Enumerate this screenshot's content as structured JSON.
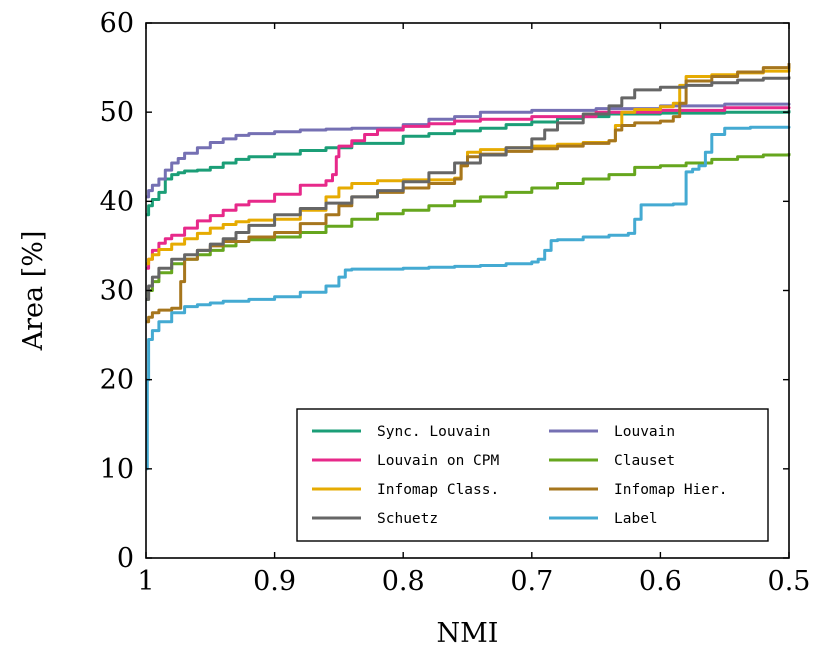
{
  "chart_data": {
    "type": "line",
    "xlabel": "NMI",
    "ylabel": "Area [%]",
    "xlim": [
      1,
      0.5
    ],
    "ylim": [
      0,
      60
    ],
    "x_reversed": true,
    "x_ticks": [
      1,
      0.9,
      0.8,
      0.7,
      0.6,
      0.5
    ],
    "x_tick_labels": [
      "1",
      "0.9",
      "0.8",
      "0.7",
      "0.6",
      "0.5"
    ],
    "y_ticks": [
      0,
      10,
      20,
      30,
      40,
      50,
      60
    ],
    "y_tick_labels": [
      "0",
      "10",
      "20",
      "30",
      "40",
      "50",
      "60"
    ],
    "grid": false,
    "legend_position": "bottom-right",
    "series": [
      {
        "name": "Sync. Louvain",
        "color": "#1b9e77",
        "x": [
          1,
          0.998,
          0.995,
          0.99,
          0.985,
          0.98,
          0.975,
          0.97,
          0.96,
          0.95,
          0.94,
          0.93,
          0.92,
          0.9,
          0.88,
          0.86,
          0.84,
          0.8,
          0.78,
          0.76,
          0.74,
          0.72,
          0.7,
          0.68,
          0.66,
          0.64,
          0.6,
          0.55,
          0.5
        ],
        "y": [
          38.5,
          39.5,
          40.2,
          41.0,
          42.5,
          43.0,
          43.2,
          43.4,
          43.5,
          43.8,
          44.3,
          44.7,
          45.0,
          45.3,
          45.7,
          46.0,
          46.5,
          47.3,
          47.6,
          47.9,
          48.2,
          48.6,
          48.9,
          49.3,
          49.5,
          49.8,
          49.9,
          50.0,
          50.2
        ]
      },
      {
        "name": "Louvain",
        "color": "#7570b3",
        "x": [
          1,
          0.998,
          0.995,
          0.99,
          0.985,
          0.98,
          0.975,
          0.97,
          0.96,
          0.95,
          0.94,
          0.93,
          0.92,
          0.9,
          0.88,
          0.86,
          0.84,
          0.8,
          0.78,
          0.76,
          0.74,
          0.7,
          0.65,
          0.6,
          0.55,
          0.5
        ],
        "y": [
          40.5,
          41.2,
          41.8,
          42.5,
          43.5,
          44.3,
          44.8,
          45.4,
          46.0,
          46.6,
          47.0,
          47.4,
          47.6,
          47.8,
          48.0,
          48.1,
          48.2,
          48.6,
          49.2,
          49.5,
          50.0,
          50.2,
          50.4,
          50.7,
          50.9,
          51.0
        ]
      },
      {
        "name": "Louvain on CPM",
        "color": "#e7298a",
        "x": [
          1,
          0.998,
          0.995,
          0.99,
          0.985,
          0.98,
          0.97,
          0.96,
          0.95,
          0.94,
          0.93,
          0.92,
          0.9,
          0.88,
          0.86,
          0.855,
          0.852,
          0.85,
          0.84,
          0.83,
          0.82,
          0.8,
          0.78,
          0.76,
          0.74,
          0.7,
          0.65,
          0.6,
          0.55,
          0.5
        ],
        "y": [
          32.5,
          33.5,
          34.5,
          35.3,
          35.8,
          36.2,
          37.0,
          37.8,
          38.4,
          39.0,
          39.6,
          40.0,
          40.8,
          41.8,
          42.3,
          43.0,
          45.0,
          46.2,
          46.8,
          47.5,
          48.0,
          48.4,
          48.7,
          49.0,
          49.2,
          49.5,
          50.0,
          50.2,
          50.5,
          50.6
        ]
      },
      {
        "name": "Clauset",
        "color": "#66a61e",
        "x": [
          1,
          0.998,
          0.995,
          0.99,
          0.98,
          0.97,
          0.96,
          0.95,
          0.94,
          0.93,
          0.92,
          0.9,
          0.88,
          0.86,
          0.84,
          0.82,
          0.8,
          0.78,
          0.76,
          0.74,
          0.72,
          0.7,
          0.68,
          0.66,
          0.64,
          0.62,
          0.6,
          0.58,
          0.56,
          0.54,
          0.52,
          0.5
        ],
        "y": [
          29.0,
          30.0,
          31.0,
          32.0,
          33.0,
          33.5,
          34.0,
          34.5,
          35.0,
          35.5,
          35.7,
          36.0,
          36.5,
          37.2,
          38.0,
          38.6,
          39.0,
          39.5,
          40.0,
          40.5,
          41.0,
          41.5,
          42.0,
          42.5,
          43.0,
          43.8,
          44.0,
          44.3,
          44.7,
          45.0,
          45.2,
          45.4
        ]
      },
      {
        "name": "Infomap Class.",
        "color": "#e6ab02",
        "x": [
          1,
          0.998,
          0.995,
          0.99,
          0.98,
          0.97,
          0.96,
          0.95,
          0.94,
          0.93,
          0.92,
          0.9,
          0.88,
          0.86,
          0.85,
          0.84,
          0.82,
          0.8,
          0.78,
          0.76,
          0.755,
          0.75,
          0.74,
          0.72,
          0.7,
          0.68,
          0.66,
          0.64,
          0.635,
          0.63,
          0.62,
          0.6,
          0.59,
          0.585,
          0.58,
          0.56,
          0.54,
          0.52,
          0.5
        ],
        "y": [
          33.0,
          33.5,
          34.0,
          34.6,
          35.2,
          35.8,
          36.4,
          37.0,
          37.4,
          37.7,
          37.9,
          38.0,
          39.0,
          40.5,
          41.5,
          42.0,
          42.3,
          42.4,
          42.4,
          42.6,
          44.0,
          45.5,
          45.8,
          46.0,
          46.2,
          46.4,
          46.6,
          46.8,
          48.5,
          50.0,
          50.3,
          50.6,
          51.0,
          53.0,
          54.0,
          54.2,
          54.4,
          54.6,
          55.0
        ]
      },
      {
        "name": "Infomap Hier.",
        "color": "#a6761d",
        "x": [
          1,
          0.998,
          0.995,
          0.99,
          0.98,
          0.975,
          0.973,
          0.97,
          0.96,
          0.95,
          0.94,
          0.92,
          0.9,
          0.88,
          0.86,
          0.85,
          0.84,
          0.82,
          0.8,
          0.78,
          0.76,
          0.755,
          0.75,
          0.74,
          0.72,
          0.7,
          0.68,
          0.66,
          0.64,
          0.635,
          0.63,
          0.62,
          0.6,
          0.59,
          0.585,
          0.58,
          0.56,
          0.54,
          0.52,
          0.5
        ],
        "y": [
          26.5,
          27.0,
          27.5,
          27.8,
          28.0,
          28.0,
          31.0,
          33.5,
          34.5,
          35.0,
          35.5,
          36.0,
          36.5,
          37.5,
          38.5,
          39.5,
          40.5,
          41.0,
          41.5,
          42.0,
          42.5,
          44.0,
          45.0,
          45.3,
          45.6,
          45.9,
          46.2,
          46.5,
          46.8,
          48.0,
          48.5,
          48.8,
          49.0,
          49.5,
          51.0,
          53.5,
          54.0,
          54.5,
          55.0,
          55.5
        ]
      },
      {
        "name": "Schuetz",
        "color": "#666666",
        "x": [
          1,
          0.998,
          0.995,
          0.99,
          0.98,
          0.97,
          0.96,
          0.95,
          0.94,
          0.93,
          0.92,
          0.9,
          0.88,
          0.86,
          0.84,
          0.82,
          0.8,
          0.78,
          0.76,
          0.74,
          0.72,
          0.7,
          0.69,
          0.68,
          0.66,
          0.64,
          0.63,
          0.62,
          0.6,
          0.58,
          0.56,
          0.54,
          0.52,
          0.5
        ],
        "y": [
          29.0,
          30.5,
          31.5,
          32.5,
          33.5,
          34.0,
          34.5,
          35.2,
          35.8,
          36.5,
          37.3,
          38.5,
          39.2,
          39.8,
          40.5,
          41.2,
          42.2,
          43.2,
          44.3,
          45.2,
          46.0,
          47.0,
          48.0,
          48.8,
          49.8,
          50.7,
          51.6,
          52.5,
          52.8,
          53.0,
          53.3,
          53.6,
          53.8,
          54.0
        ]
      },
      {
        "name": "Label",
        "color": "#44aad2",
        "x": [
          1,
          0.999,
          0.998,
          0.995,
          0.99,
          0.98,
          0.97,
          0.96,
          0.95,
          0.94,
          0.92,
          0.9,
          0.88,
          0.86,
          0.85,
          0.845,
          0.84,
          0.82,
          0.8,
          0.78,
          0.76,
          0.74,
          0.72,
          0.7,
          0.695,
          0.69,
          0.685,
          0.68,
          0.66,
          0.64,
          0.625,
          0.62,
          0.615,
          0.6,
          0.59,
          0.58,
          0.575,
          0.57,
          0.565,
          0.56,
          0.55,
          0.53,
          0.5
        ],
        "y": [
          10.0,
          20.0,
          24.5,
          25.5,
          26.5,
          27.5,
          28.2,
          28.4,
          28.6,
          28.8,
          29.0,
          29.3,
          29.8,
          30.5,
          31.5,
          32.3,
          32.4,
          32.4,
          32.5,
          32.6,
          32.7,
          32.8,
          33.0,
          33.2,
          33.5,
          34.5,
          35.6,
          35.7,
          36.0,
          36.2,
          36.4,
          38.0,
          39.6,
          39.6,
          39.7,
          43.3,
          43.6,
          44.0,
          45.5,
          47.5,
          48.2,
          48.3,
          48.4
        ]
      }
    ]
  }
}
